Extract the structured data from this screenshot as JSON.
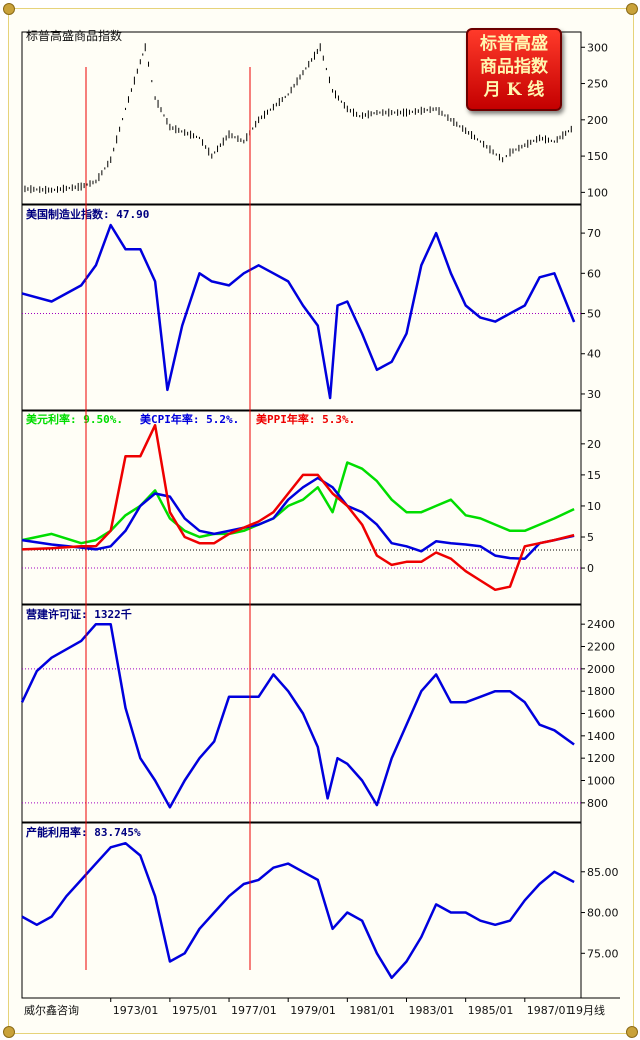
{
  "title": "标普高盛商品指数",
  "badge_lines": [
    "标普高盛",
    "商品指数",
    "月  K 线"
  ],
  "footer_left": "威尔鑫咨询",
  "x_ticks": [
    "1973/01",
    "1975/01",
    "1977/01",
    "1979/01",
    "1981/01",
    "1983/01",
    "1985/01",
    "1987/01"
  ],
  "x_last_label": "19月线",
  "colors": {
    "blue": "#0000dd",
    "green": "#00dd00",
    "red": "#ee0000",
    "black": "#000000",
    "ref": "#a000c0"
  },
  "chart_data": [
    {
      "type": "candlestick",
      "title": "标普高盛商品指数",
      "ylim": [
        95,
        310
      ],
      "yticks": [
        100,
        150,
        200,
        250,
        300
      ],
      "x": [
        "1970/01",
        "1971/01",
        "1972/01",
        "1972/07",
        "1973/01",
        "1973/07",
        "1974/01",
        "1974/03",
        "1974/07",
        "1975/01",
        "1976/01",
        "1976/06",
        "1977/01",
        "1977/07",
        "1978/01",
        "1979/01",
        "1979/07",
        "1980/02",
        "1980/07",
        "1981/01",
        "1981/06",
        "1982/01",
        "1983/01",
        "1984/01",
        "1985/01",
        "1985/07",
        "1986/04",
        "1986/07",
        "1987/01",
        "1987/07",
        "1988/01",
        "1988/09"
      ],
      "values": [
        105,
        103,
        108,
        115,
        145,
        215,
        280,
        300,
        230,
        190,
        175,
        150,
        180,
        170,
        200,
        235,
        265,
        300,
        240,
        215,
        205,
        210,
        210,
        215,
        185,
        170,
        145,
        155,
        165,
        175,
        170,
        190
      ]
    },
    {
      "type": "line",
      "label": "美国制造业指数: 47.90",
      "ylim": [
        28,
        75
      ],
      "yticks": [
        30,
        40,
        50,
        60,
        70
      ],
      "ref_line": 50,
      "x": [
        "1970/01",
        "1971/01",
        "1972/01",
        "1972/07",
        "1973/01",
        "1973/07",
        "1974/01",
        "1974/07",
        "1974/12",
        "1975/06",
        "1976/01",
        "1976/06",
        "1977/01",
        "1977/07",
        "1978/01",
        "1978/07",
        "1979/01",
        "1979/07",
        "1980/01",
        "1980/06",
        "1980/09",
        "1981/01",
        "1981/07",
        "1982/01",
        "1982/07",
        "1983/01",
        "1983/07",
        "1984/01",
        "1984/07",
        "1985/01",
        "1985/07",
        "1986/01",
        "1986/07",
        "1987/01",
        "1987/07",
        "1988/01",
        "1988/09"
      ],
      "values": [
        55,
        53,
        57,
        62,
        72,
        66,
        66,
        58,
        31,
        47,
        60,
        58,
        57,
        60,
        62,
        60,
        58,
        52,
        47,
        29,
        52,
        53,
        45,
        36,
        38,
        45,
        62,
        70,
        60,
        52,
        49,
        48,
        50,
        52,
        59,
        60,
        47.9
      ]
    },
    {
      "type": "line",
      "series_labels": [
        "美元利率: 9.50%.",
        "美CPI年率: 5.2%.",
        "美PPI年率: 5.3%."
      ],
      "ylim": [
        -4.5,
        24
      ],
      "yticks": [
        0,
        5,
        10,
        15,
        20
      ],
      "ref_line": 2.9,
      "x": [
        "1970/01",
        "1971/01",
        "1972/01",
        "1972/07",
        "1973/01",
        "1973/07",
        "1974/01",
        "1974/07",
        "1975/01",
        "1975/07",
        "1976/01",
        "1976/07",
        "1977/01",
        "1977/07",
        "1978/01",
        "1978/07",
        "1979/01",
        "1979/07",
        "1980/01",
        "1980/07",
        "1981/01",
        "1981/07",
        "1982/01",
        "1982/07",
        "1983/01",
        "1983/07",
        "1984/01",
        "1984/07",
        "1985/01",
        "1985/07",
        "1986/01",
        "1986/07",
        "1987/01",
        "1987/07",
        "1988/01",
        "1988/09"
      ],
      "series": [
        {
          "name": "美元利率",
          "color": "green",
          "values": [
            4.5,
            5.5,
            4,
            4.5,
            6,
            8.5,
            10,
            12.5,
            8,
            6,
            5,
            5.5,
            5.5,
            6,
            7,
            8,
            10,
            11,
            13,
            9,
            17,
            16,
            14,
            11,
            9,
            9,
            10,
            11,
            8.5,
            8,
            7,
            6,
            6,
            7,
            8,
            9.5
          ]
        },
        {
          "name": "美CPI年率",
          "color": "blue",
          "values": [
            4.5,
            3.8,
            3.3,
            3,
            3.5,
            6,
            10,
            12,
            11.5,
            8,
            6,
            5.5,
            6,
            6.5,
            7,
            8,
            11,
            13,
            14.5,
            13,
            10,
            9,
            7,
            4,
            3.5,
            2.7,
            4.3,
            4,
            3.8,
            3.5,
            2,
            1.6,
            1.5,
            4,
            4.5,
            5.2
          ]
        },
        {
          "name": "美PPI年率",
          "color": "red",
          "values": [
            3,
            3.2,
            3.5,
            3.5,
            6,
            18,
            18,
            23,
            9,
            5,
            4,
            4,
            5.5,
            6.5,
            7.5,
            9,
            12,
            15,
            15,
            12,
            10,
            7,
            2,
            0.5,
            1,
            1,
            2.5,
            1.5,
            -0.5,
            -2,
            -3.5,
            -3,
            3.5,
            4,
            4.5,
            5.3
          ]
        }
      ]
    },
    {
      "type": "line",
      "label": "营建许可证: 1322千",
      "ylim": [
        700,
        2500
      ],
      "yticks": [
        800,
        1000,
        1200,
        1400,
        1600,
        1800,
        2000,
        2200,
        2400
      ],
      "ref_lines": [
        2000,
        800
      ],
      "x": [
        "1970/01",
        "1970/07",
        "1971/01",
        "1972/01",
        "1972/07",
        "1973/01",
        "1973/07",
        "1974/01",
        "1974/07",
        "1975/01",
        "1975/07",
        "1976/01",
        "1976/07",
        "1977/01",
        "1977/07",
        "1978/01",
        "1978/07",
        "1979/01",
        "1979/07",
        "1980/01",
        "1980/05",
        "1980/09",
        "1981/01",
        "1981/07",
        "1982/01",
        "1982/07",
        "1983/01",
        "1983/07",
        "1984/01",
        "1984/07",
        "1985/01",
        "1985/07",
        "1986/01",
        "1986/07",
        "1987/01",
        "1987/07",
        "1988/01",
        "1988/09"
      ],
      "values": [
        1700,
        1980,
        2100,
        2250,
        2400,
        2400,
        1650,
        1200,
        1000,
        760,
        1000,
        1200,
        1350,
        1750,
        1750,
        1750,
        1950,
        1800,
        1600,
        1300,
        840,
        1200,
        1150,
        1000,
        780,
        1200,
        1500,
        1800,
        1950,
        1700,
        1700,
        1750,
        1800,
        1800,
        1700,
        1500,
        1450,
        1322
      ]
    },
    {
      "type": "line",
      "label": "产能利用率: 83.745%",
      "ylim": [
        70.5,
        90
      ],
      "yticks": [
        75.0,
        80.0,
        85.0
      ],
      "x": [
        "1970/01",
        "1970/07",
        "1971/01",
        "1971/07",
        "1972/01",
        "1972/07",
        "1973/01",
        "1973/07",
        "1974/01",
        "1974/07",
        "1975/01",
        "1975/07",
        "1976/01",
        "1976/07",
        "1977/01",
        "1977/07",
        "1978/01",
        "1978/07",
        "1979/01",
        "1979/07",
        "1980/01",
        "1980/07",
        "1981/01",
        "1981/07",
        "1982/01",
        "1982/07",
        "1983/01",
        "1983/07",
        "1984/01",
        "1984/07",
        "1985/01",
        "1985/07",
        "1986/01",
        "1986/07",
        "1987/01",
        "1987/07",
        "1988/01",
        "1988/09"
      ],
      "values": [
        79.5,
        78.5,
        79.5,
        82,
        84,
        86,
        88,
        88.5,
        87,
        82,
        74,
        75,
        78,
        80,
        82,
        83.5,
        84,
        85.5,
        86,
        85,
        84,
        78,
        80,
        79,
        75,
        72,
        74,
        77,
        81,
        80,
        80,
        79,
        78.5,
        79,
        81.5,
        83.5,
        85,
        83.745
      ]
    }
  ]
}
